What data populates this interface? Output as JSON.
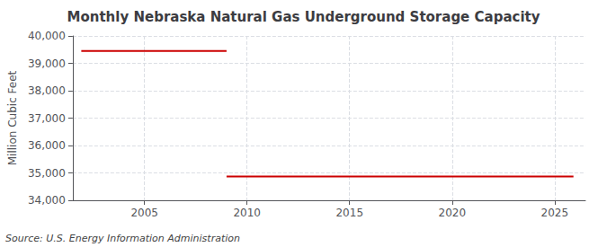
{
  "chart_data": {
    "type": "line",
    "title": "Monthly Nebraska Natural Gas Underground Storage Capacity",
    "ylabel": "Million Cubic Feet",
    "annotations": [
      "Source: U.S. Energy Information Administration"
    ],
    "series": [
      {
        "color": "#cc0000",
        "x": [
          2001.9167,
          2009.0
        ],
        "values": [
          39450,
          39450
        ]
      },
      {
        "color": "#cc0000",
        "x": [
          2009.0,
          2025.9167
        ],
        "values": [
          34870,
          34870
        ]
      }
    ],
    "xlim": [
      2001.5,
      2026.5
    ],
    "xticks": [
      2005,
      2010,
      2015,
      2020,
      2025
    ],
    "ylim": [
      34000,
      40000
    ],
    "yticks": [
      {
        "value": 34000,
        "label": "34,000"
      },
      {
        "value": 35000,
        "label": "35,000"
      },
      {
        "value": 36000,
        "label": "36,000"
      },
      {
        "value": 37000,
        "label": "37,000"
      },
      {
        "value": 38000,
        "label": "38,000"
      },
      {
        "value": 39000,
        "label": "39,000"
      },
      {
        "value": 40000,
        "label": "40,000"
      }
    ],
    "grid": true
  }
}
